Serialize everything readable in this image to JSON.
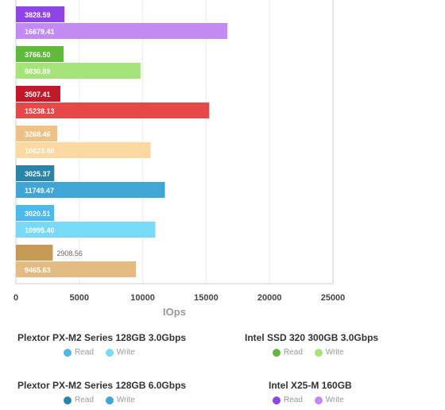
{
  "chart_data": {
    "type": "bar",
    "orientation": "horizontal",
    "xlabel": "IOps",
    "xlim": [
      0,
      25000
    ],
    "xticks": [
      "0",
      "5000",
      "10000",
      "15000",
      "20000",
      "25000"
    ],
    "grid": true,
    "groups": [
      {
        "read": 3828.59,
        "write": 16679.41,
        "read_label": "3828.59",
        "write_label": "16679.41",
        "read_color": "#8e44e6",
        "write_color": "#c28af2"
      },
      {
        "read": 3766.5,
        "write": 9830.89,
        "read_label": "3766.50",
        "write_label": "9830.89",
        "read_color": "#5fba3c",
        "write_color": "#a6e47a"
      },
      {
        "read": 3507.41,
        "write": 15238.13,
        "read_label": "3507.41",
        "write_label": "15238.13",
        "read_color": "#c0192b",
        "write_color": "#e64848"
      },
      {
        "read": 3268.46,
        "write": 10623.8,
        "read_label": "3268.46",
        "write_label": "10623.80",
        "read_color": "#eec287",
        "write_color": "#fdd8a0"
      },
      {
        "read": 3025.37,
        "write": 11749.47,
        "read_label": "3025.37",
        "write_label": "11749.47",
        "read_color": "#2a84a8",
        "write_color": "#40a6d6"
      },
      {
        "read": 3020.51,
        "write": 10995.4,
        "read_label": "3020.51",
        "write_label": "10995.40",
        "read_color": "#4bb9ea",
        "write_color": "#79daf7"
      },
      {
        "read": 2908.56,
        "write": 9465.63,
        "read_label": "2908.56",
        "write_label": "9465.63",
        "read_color": "#c49a55",
        "write_color": "#e2bc82"
      }
    ]
  },
  "legend": [
    {
      "title": "Plextor PX-M2 Series 128GB 3.0Gbps",
      "read_label": "Read",
      "write_label": "Write",
      "read_color": "#4bb9ea",
      "write_color": "#79daf7"
    },
    {
      "title": "Intel SSD 320 300GB 3.0Gbps",
      "read_label": "Read",
      "write_label": "Write",
      "read_color": "#5fba3c",
      "write_color": "#a6e47a"
    },
    {
      "title": "Plextor PX-M2 Series 128GB 6.0Gbps",
      "read_label": "Read",
      "write_label": "Write",
      "read_color": "#2a84a8",
      "write_color": "#40a6d6"
    },
    {
      "title": "Intel X25-M 160GB",
      "read_label": "Read",
      "write_label": "Write",
      "read_color": "#8e44e6",
      "write_color": "#c28af2"
    }
  ]
}
